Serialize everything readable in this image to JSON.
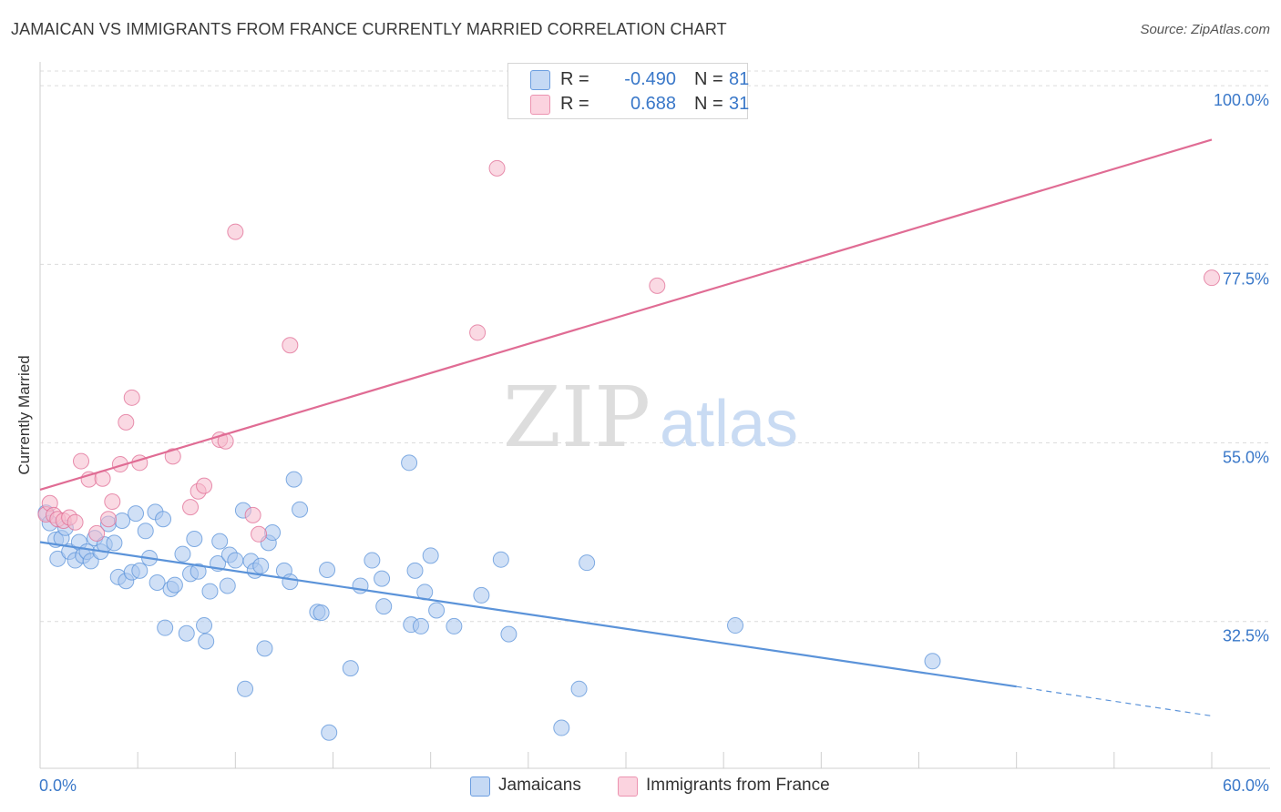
{
  "header": {
    "title": "JAMAICAN VS IMMIGRANTS FROM FRANCE CURRENTLY MARRIED CORRELATION CHART",
    "source": "Source: ZipAtlas.com"
  },
  "watermark": {
    "zip": "ZIP",
    "atlas": "atlas"
  },
  "legend": {
    "rows": [
      {
        "r_label": "R =",
        "r_value": "-0.490",
        "n_label": "N =",
        "n_value": "81",
        "color": "#a9c7ef"
      },
      {
        "r_label": "R =",
        "r_value": "0.688",
        "n_label": "N =",
        "n_value": "31",
        "color": "#f6b9cc"
      }
    ]
  },
  "bottom_legend": {
    "items": [
      {
        "label": "Jamaicans",
        "color": "#a9c7ef"
      },
      {
        "label": "Immigrants from France",
        "color": "#f6b9cc"
      }
    ]
  },
  "chart_data": {
    "type": "scatter",
    "ylabel": "Currently Married",
    "xlabel": "",
    "xlim": [
      0,
      60
    ],
    "ylim": [
      14,
      103
    ],
    "x_tick_labels": [
      "0.0%",
      "60.0%"
    ],
    "y_ticks": [
      {
        "value": 32.5,
        "label": "32.5%"
      },
      {
        "value": 55.0,
        "label": "55.0%"
      },
      {
        "value": 77.5,
        "label": "77.5%"
      },
      {
        "value": 100.0,
        "label": "100.0%"
      }
    ],
    "grid": true,
    "series": [
      {
        "name": "Jamaicans",
        "color": "#5b93d9",
        "fill": "#a9c7ef",
        "trend": {
          "x0": 0,
          "y0": 42.5,
          "x1": 50,
          "y1": 24.3,
          "dash_to_x": 60,
          "dash_to_y": 20.6
        },
        "points": [
          [
            0.3,
            46.2
          ],
          [
            0.5,
            44.9
          ],
          [
            0.8,
            42.8
          ],
          [
            0.9,
            40.4
          ],
          [
            1.1,
            43.0
          ],
          [
            1.3,
            44.3
          ],
          [
            1.5,
            41.3
          ],
          [
            1.8,
            40.2
          ],
          [
            2.0,
            42.5
          ],
          [
            2.2,
            40.8
          ],
          [
            2.4,
            41.3
          ],
          [
            2.6,
            40.1
          ],
          [
            2.8,
            43.0
          ],
          [
            3.1,
            41.3
          ],
          [
            3.3,
            42.2
          ],
          [
            3.5,
            44.8
          ],
          [
            3.8,
            42.4
          ],
          [
            4.0,
            38.1
          ],
          [
            4.2,
            45.2
          ],
          [
            4.4,
            37.6
          ],
          [
            4.7,
            38.7
          ],
          [
            4.9,
            46.1
          ],
          [
            5.1,
            38.9
          ],
          [
            5.4,
            43.9
          ],
          [
            5.6,
            40.5
          ],
          [
            5.9,
            46.3
          ],
          [
            6.0,
            37.4
          ],
          [
            6.3,
            45.4
          ],
          [
            6.4,
            31.7
          ],
          [
            6.7,
            36.6
          ],
          [
            6.9,
            37.1
          ],
          [
            7.3,
            41.0
          ],
          [
            7.5,
            31.0
          ],
          [
            7.7,
            38.5
          ],
          [
            7.9,
            42.9
          ],
          [
            8.1,
            38.8
          ],
          [
            8.4,
            32.0
          ],
          [
            8.5,
            30.0
          ],
          [
            8.7,
            36.3
          ],
          [
            9.1,
            39.8
          ],
          [
            9.2,
            42.6
          ],
          [
            9.6,
            37.0
          ],
          [
            9.7,
            40.9
          ],
          [
            10.0,
            40.2
          ],
          [
            10.4,
            46.5
          ],
          [
            10.5,
            24.0
          ],
          [
            10.8,
            40.1
          ],
          [
            11.0,
            38.9
          ],
          [
            11.3,
            39.5
          ],
          [
            11.5,
            29.1
          ],
          [
            11.7,
            42.4
          ],
          [
            11.9,
            43.7
          ],
          [
            12.5,
            38.9
          ],
          [
            12.8,
            37.5
          ],
          [
            13.0,
            50.4
          ],
          [
            13.3,
            46.6
          ],
          [
            14.2,
            33.7
          ],
          [
            14.4,
            33.6
          ],
          [
            14.7,
            39.0
          ],
          [
            14.8,
            18.5
          ],
          [
            15.9,
            26.6
          ],
          [
            16.4,
            37.0
          ],
          [
            17.0,
            40.2
          ],
          [
            17.5,
            37.9
          ],
          [
            17.6,
            34.4
          ],
          [
            18.9,
            52.5
          ],
          [
            19.0,
            32.1
          ],
          [
            19.2,
            38.9
          ],
          [
            19.5,
            31.9
          ],
          [
            19.7,
            36.2
          ],
          [
            20.0,
            40.8
          ],
          [
            20.3,
            33.9
          ],
          [
            21.2,
            31.9
          ],
          [
            22.6,
            35.8
          ],
          [
            23.6,
            40.3
          ],
          [
            24.0,
            30.9
          ],
          [
            26.7,
            19.1
          ],
          [
            27.6,
            24.0
          ],
          [
            28.0,
            39.9
          ],
          [
            35.6,
            32.0
          ],
          [
            45.7,
            27.5
          ]
        ]
      },
      {
        "name": "Immigrants from France",
        "color": "#e06c94",
        "fill": "#f6b9cc",
        "trend": {
          "x0": 0,
          "y0": 49.1,
          "x1": 60,
          "y1": 93.2
        },
        "points": [
          [
            0.3,
            46.0
          ],
          [
            0.5,
            47.4
          ],
          [
            0.7,
            45.9
          ],
          [
            0.9,
            45.4
          ],
          [
            1.2,
            45.2
          ],
          [
            1.5,
            45.6
          ],
          [
            1.8,
            45.0
          ],
          [
            2.1,
            52.7
          ],
          [
            2.5,
            50.4
          ],
          [
            2.9,
            43.6
          ],
          [
            3.2,
            50.5
          ],
          [
            3.5,
            45.4
          ],
          [
            3.7,
            47.6
          ],
          [
            4.1,
            52.3
          ],
          [
            4.4,
            57.6
          ],
          [
            4.7,
            60.7
          ],
          [
            5.1,
            52.5
          ],
          [
            6.8,
            53.3
          ],
          [
            7.7,
            46.9
          ],
          [
            8.1,
            48.9
          ],
          [
            8.4,
            49.6
          ],
          [
            9.2,
            55.4
          ],
          [
            9.5,
            55.2
          ],
          [
            10.0,
            81.6
          ],
          [
            10.9,
            45.9
          ],
          [
            11.2,
            43.5
          ],
          [
            12.8,
            67.3
          ],
          [
            22.4,
            68.9
          ],
          [
            23.4,
            89.6
          ],
          [
            31.6,
            74.8
          ],
          [
            60.0,
            75.8
          ]
        ]
      }
    ]
  }
}
